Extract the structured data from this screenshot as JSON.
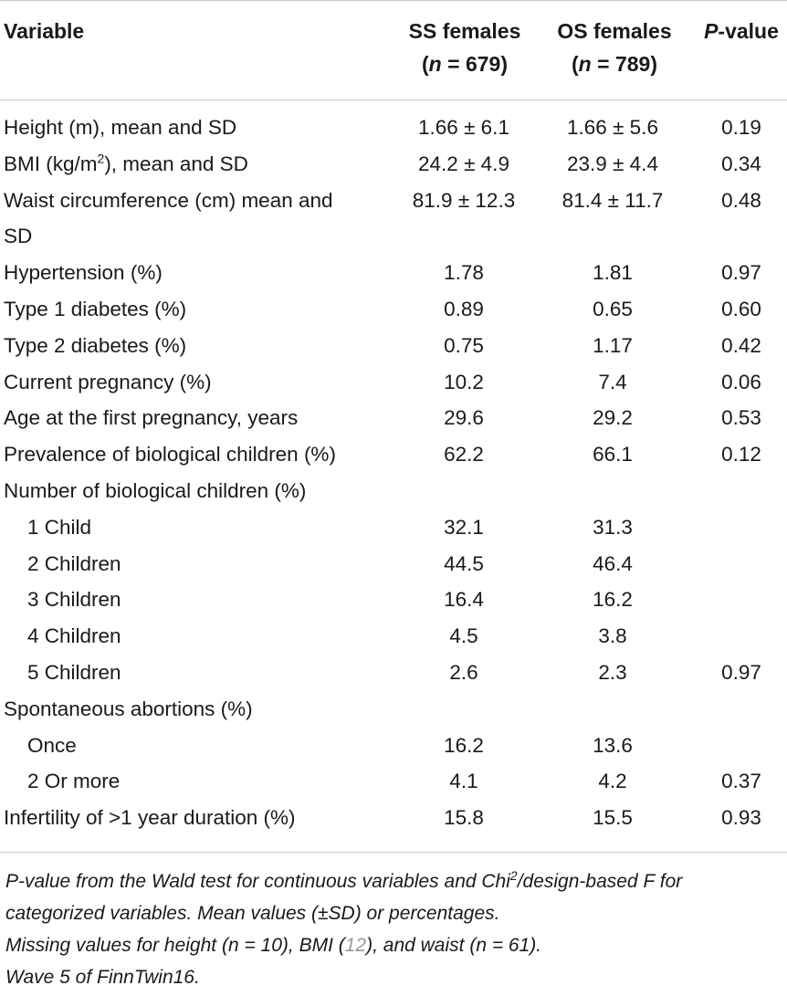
{
  "table": {
    "headers": {
      "variable": "Variable",
      "ss_line1": "SS females",
      "ss_n_label": "n",
      "ss_n_value": " = 679)",
      "os_line1": "OS females",
      "os_n_label": "n",
      "os_n_value": " = 789)",
      "pvalue_p": "P",
      "pvalue_rest": "-value"
    },
    "rows": [
      {
        "variable": "Height (m), mean and SD",
        "ss": "1.66 ± 6.1",
        "os": "1.66 ± 5.6",
        "p": "0.19"
      },
      {
        "variable_pre": "BMI (kg/m",
        "variable_sup": "2",
        "variable_post": "), mean and SD",
        "ss": "24.2 ± 4.9",
        "os": "23.9 ± 4.4",
        "p": "0.34"
      },
      {
        "variable": "Waist circumference (cm) mean and SD",
        "ss": "81.9 ± 12.3",
        "os": "81.4 ± 11.7",
        "p": "0.48"
      },
      {
        "variable": "Hypertension (%)",
        "ss": "1.78",
        "os": "1.81",
        "p": "0.97"
      },
      {
        "variable": "Type 1 diabetes (%)",
        "ss": "0.89",
        "os": "0.65",
        "p": "0.60"
      },
      {
        "variable": "Type 2 diabetes (%)",
        "ss": "0.75",
        "os": "1.17",
        "p": "0.42"
      },
      {
        "variable": "Current pregnancy (%)",
        "ss": "10.2",
        "os": "7.4",
        "p": "0.06"
      },
      {
        "variable": "Age at the first pregnancy, years",
        "ss": "29.6",
        "os": "29.2",
        "p": "0.53"
      },
      {
        "variable": "Prevalence of biological children (%)",
        "ss": "62.2",
        "os": "66.1",
        "p": "0.12"
      },
      {
        "variable": "Number of biological children (%)",
        "ss": "",
        "os": "",
        "p": ""
      },
      {
        "variable": "1 Child",
        "ss": "32.1",
        "os": "31.3",
        "p": ""
      },
      {
        "variable": "2 Children",
        "ss": "44.5",
        "os": "46.4",
        "p": ""
      },
      {
        "variable": "3 Children",
        "ss": "16.4",
        "os": "16.2",
        "p": ""
      },
      {
        "variable": "4 Children",
        "ss": "4.5",
        "os": "3.8",
        "p": ""
      },
      {
        "variable": "5 Children",
        "ss": "2.6",
        "os": "2.3",
        "p": "0.97"
      },
      {
        "variable": "Spontaneous abortions (%)",
        "ss": "",
        "os": "",
        "p": ""
      },
      {
        "variable": "Once",
        "ss": "16.2",
        "os": "13.6",
        "p": ""
      },
      {
        "variable": "2 Or more",
        "ss": "4.1",
        "os": "4.2",
        "p": "0.37"
      },
      {
        "variable": "Infertility of >1 year duration (%)",
        "ss": "15.8",
        "os": "15.5",
        "p": "0.93"
      }
    ]
  },
  "footnotes": {
    "line1_a": "P-value from the Wald test for continuous variables and Chi",
    "line1_sup": "2",
    "line1_b": "/design-based F for",
    "line2": "categorized variables. Mean values (±SD) or percentages.",
    "line3_a": "Missing values for height (n = 10), BMI (",
    "line3_ref": "12",
    "line3_b": "), and waist (n = 61).",
    "line4": "Wave 5 of FinnTwin16."
  }
}
